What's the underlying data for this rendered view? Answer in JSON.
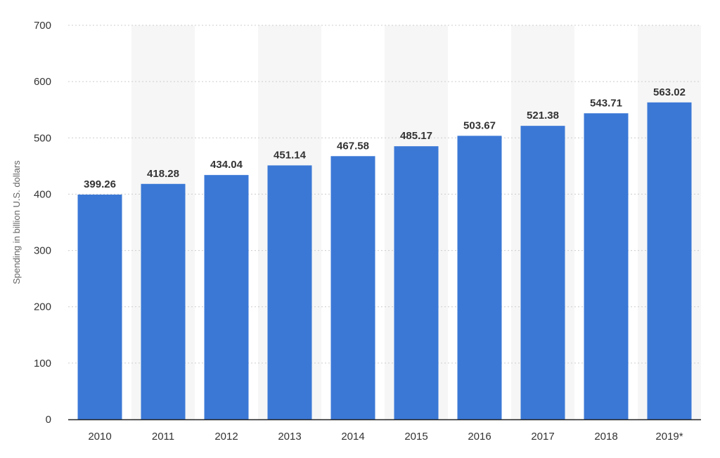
{
  "chart_data": {
    "type": "bar",
    "title": "",
    "xlabel": "",
    "ylabel": "Spending in billion U.S. dollars",
    "categories": [
      "2010",
      "2011",
      "2012",
      "2013",
      "2014",
      "2015",
      "2016",
      "2017",
      "2018",
      "2019*"
    ],
    "values": [
      399.26,
      418.28,
      434.04,
      451.14,
      467.58,
      485.17,
      503.67,
      521.38,
      543.71,
      563.02
    ],
    "value_labels": [
      "399.26",
      "418.28",
      "434.04",
      "451.14",
      "467.58",
      "485.17",
      "503.67",
      "521.38",
      "543.71",
      "563.02"
    ],
    "ylim": [
      0,
      700
    ],
    "yticks": [
      "0",
      "100",
      "200",
      "300",
      "400",
      "500",
      "600",
      "700"
    ],
    "grid": true,
    "legend": "none",
    "colors": {
      "bar": "#3b78d6",
      "alternate_band": "#f6f6f6",
      "grid": "#cccccc",
      "axis": "#222222",
      "text": "#333333"
    }
  }
}
